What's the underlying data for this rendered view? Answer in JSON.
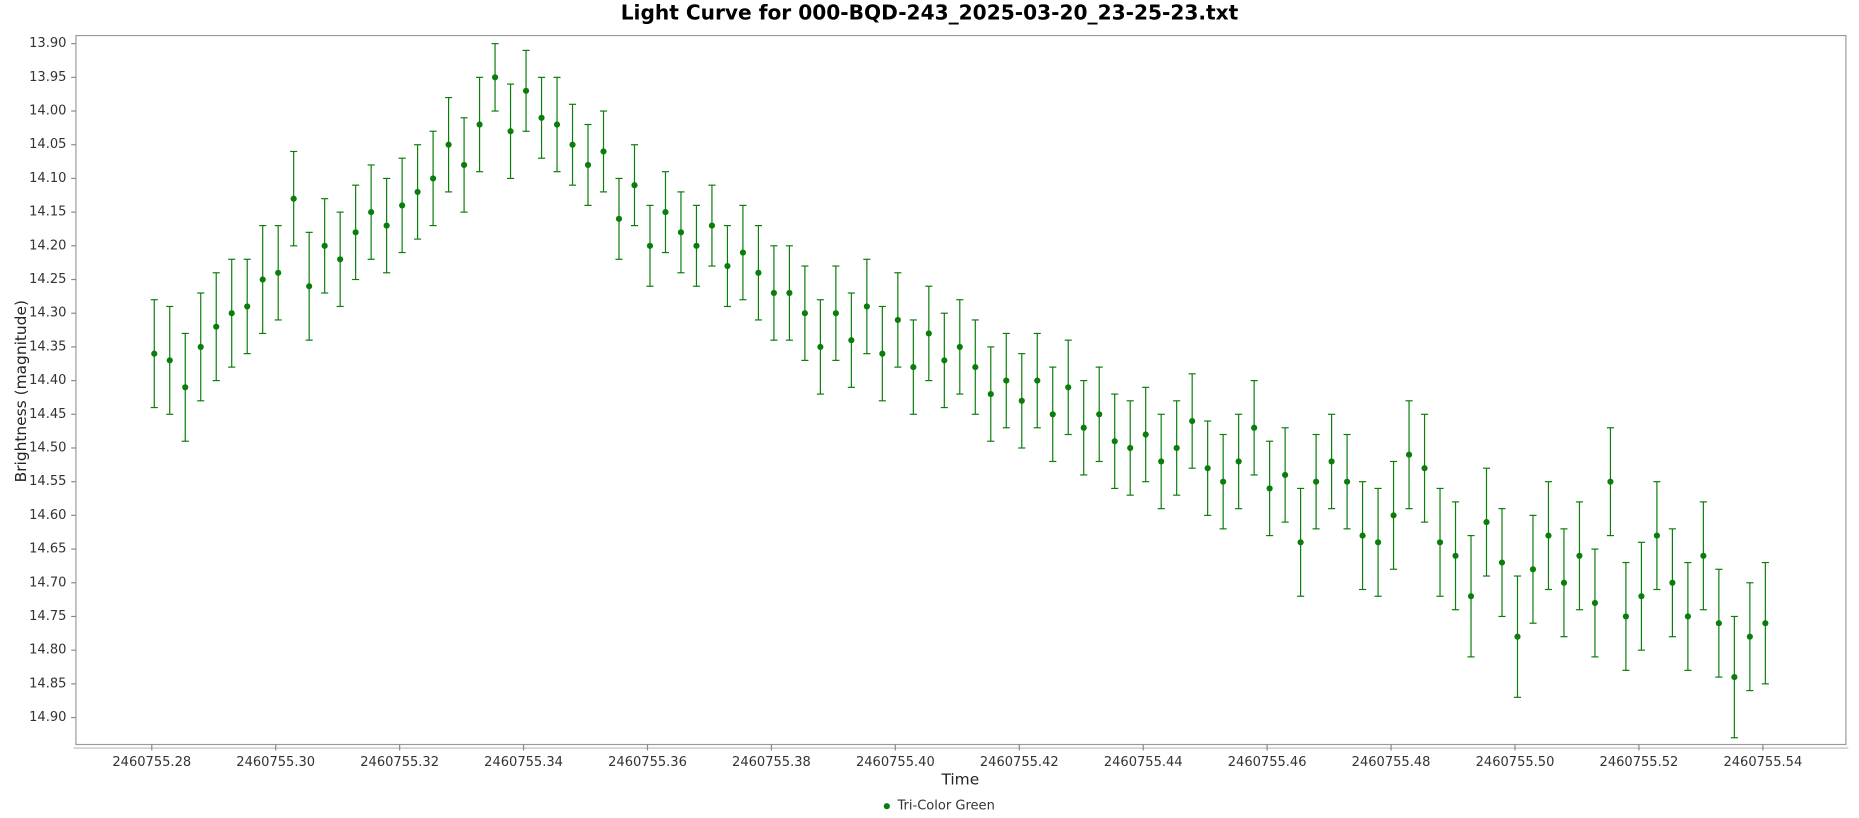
{
  "chart_data": {
    "type": "scatter",
    "title": "Light Curve for 000-BQD-243_2025-03-20_23-25-23.txt",
    "x_label": "Time",
    "y_label": "Brightness (magnitude)",
    "x": [
      2460755.2804,
      2460755.2829,
      2460755.2854,
      2460755.2879,
      2460755.2904,
      2460755.2929,
      2460755.2954,
      2460755.2979,
      2460755.3004,
      2460755.3029,
      2460755.3054,
      2460755.3079,
      2460755.3104,
      2460755.3129,
      2460755.3154,
      2460755.3179,
      2460755.3204,
      2460755.3229,
      2460755.3254,
      2460755.3279,
      2460755.3304,
      2460755.3329,
      2460755.3354,
      2460755.3379,
      2460755.3404,
      2460755.3429,
      2460755.3454,
      2460755.3479,
      2460755.3504,
      2460755.3529,
      2460755.3554,
      2460755.3579,
      2460755.3604,
      2460755.3629,
      2460755.3654,
      2460755.3679,
      2460755.3704,
      2460755.3729,
      2460755.3754,
      2460755.3779,
      2460755.3804,
      2460755.3829,
      2460755.3854,
      2460755.3879,
      2460755.3904,
      2460755.3929,
      2460755.3954,
      2460755.3979,
      2460755.4004,
      2460755.4029,
      2460755.4054,
      2460755.4079,
      2460755.4104,
      2460755.4129,
      2460755.4154,
      2460755.4179,
      2460755.4204,
      2460755.4229,
      2460755.4254,
      2460755.4279,
      2460755.4304,
      2460755.4329,
      2460755.4354,
      2460755.4379,
      2460755.4404,
      2460755.4429,
      2460755.4454,
      2460755.4479,
      2460755.4504,
      2460755.4529,
      2460755.4554,
      2460755.4579,
      2460755.4604,
      2460755.4629,
      2460755.4654,
      2460755.4679,
      2460755.4704,
      2460755.4729,
      2460755.4754,
      2460755.4779,
      2460755.4804,
      2460755.4829,
      2460755.4854,
      2460755.4879,
      2460755.4904,
      2460755.4929,
      2460755.4954,
      2460755.4979,
      2460755.5004,
      2460755.5029,
      2460755.5054,
      2460755.5079,
      2460755.5104,
      2460755.5129,
      2460755.5154,
      2460755.5179,
      2460755.5204,
      2460755.5229,
      2460755.5254,
      2460755.5279,
      2460755.5304,
      2460755.5329,
      2460755.5354,
      2460755.5379,
      2460755.5404
    ],
    "series": [
      {
        "name": "Tri-Color Green",
        "color": "#0a7d0a",
        "values": [
          14.36,
          14.37,
          14.41,
          14.35,
          14.32,
          14.3,
          14.29,
          14.25,
          14.24,
          14.13,
          14.26,
          14.2,
          14.22,
          14.18,
          14.15,
          14.17,
          14.14,
          14.12,
          14.1,
          14.05,
          14.08,
          14.02,
          13.95,
          14.03,
          13.97,
          14.01,
          14.02,
          14.05,
          14.08,
          14.06,
          14.16,
          14.11,
          14.2,
          14.15,
          14.18,
          14.2,
          14.17,
          14.23,
          14.21,
          14.24,
          14.27,
          14.27,
          14.3,
          14.35,
          14.3,
          14.34,
          14.29,
          14.36,
          14.31,
          14.38,
          14.33,
          14.37,
          14.35,
          14.38,
          14.42,
          14.4,
          14.43,
          14.4,
          14.45,
          14.41,
          14.47,
          14.45,
          14.49,
          14.5,
          14.48,
          14.52,
          14.5,
          14.46,
          14.53,
          14.55,
          14.52,
          14.47,
          14.56,
          14.54,
          14.64,
          14.55,
          14.52,
          14.55,
          14.63,
          14.64,
          14.6,
          14.51,
          14.53,
          14.64,
          14.66,
          14.72,
          14.61,
          14.67,
          14.78,
          14.68,
          14.63,
          14.7,
          14.66,
          14.73,
          14.55,
          14.75,
          14.72,
          14.63,
          14.7,
          14.75,
          14.66,
          14.76,
          14.84,
          14.78,
          14.76
        ],
        "errors": [
          0.08,
          0.08,
          0.08,
          0.08,
          0.08,
          0.08,
          0.07,
          0.08,
          0.07,
          0.07,
          0.08,
          0.07,
          0.07,
          0.07,
          0.07,
          0.07,
          0.07,
          0.07,
          0.07,
          0.07,
          0.07,
          0.07,
          0.05,
          0.07,
          0.06,
          0.06,
          0.07,
          0.06,
          0.06,
          0.06,
          0.06,
          0.06,
          0.06,
          0.06,
          0.06,
          0.06,
          0.06,
          0.06,
          0.07,
          0.07,
          0.07,
          0.07,
          0.07,
          0.07,
          0.07,
          0.07,
          0.07,
          0.07,
          0.07,
          0.07,
          0.07,
          0.07,
          0.07,
          0.07,
          0.07,
          0.07,
          0.07,
          0.07,
          0.07,
          0.07,
          0.07,
          0.07,
          0.07,
          0.07,
          0.07,
          0.07,
          0.07,
          0.07,
          0.07,
          0.07,
          0.07,
          0.07,
          0.07,
          0.07,
          0.08,
          0.07,
          0.07,
          0.07,
          0.08,
          0.08,
          0.08,
          0.08,
          0.08,
          0.08,
          0.08,
          0.09,
          0.08,
          0.08,
          0.09,
          0.08,
          0.08,
          0.08,
          0.08,
          0.08,
          0.08,
          0.08,
          0.08,
          0.08,
          0.08,
          0.08,
          0.08,
          0.08,
          0.09,
          0.08,
          0.09
        ]
      }
    ],
    "xlim": [
      2460755.26776,
      2460755.5534
    ],
    "ylim": [
      14.94,
      13.888
    ],
    "xticks": [
      2460755.28,
      {
        "value": 2460755.3,
        "label": "2460755.30"
      },
      2460755.32,
      2460755.34,
      2460755.36,
      2460755.38,
      {
        "value": 2460755.4,
        "label": "2460755.40"
      },
      2460755.42,
      2460755.44,
      2460755.46,
      2460755.48,
      {
        "value": 2460755.5,
        "label": "2460755.50"
      },
      2460755.52,
      2460755.54
    ],
    "yticks": [
      {
        "value": 13.9,
        "label": "13.90"
      },
      13.95,
      {
        "value": 14.0,
        "label": "14.00"
      },
      14.05,
      {
        "value": 14.1,
        "label": "14.10"
      },
      14.15,
      {
        "value": 14.2,
        "label": "14.20"
      },
      14.25,
      {
        "value": 14.3,
        "label": "14.30"
      },
      14.35,
      {
        "value": 14.4,
        "label": "14.40"
      },
      14.45,
      {
        "value": 14.5,
        "label": "14.50"
      },
      14.55,
      {
        "value": 14.6,
        "label": "14.60"
      },
      14.65,
      {
        "value": 14.7,
        "label": "14.70"
      },
      14.75,
      {
        "value": 14.8,
        "label": "14.80"
      },
      14.85,
      {
        "value": 14.9,
        "label": "14.90"
      }
    ],
    "legend": "bottom"
  }
}
